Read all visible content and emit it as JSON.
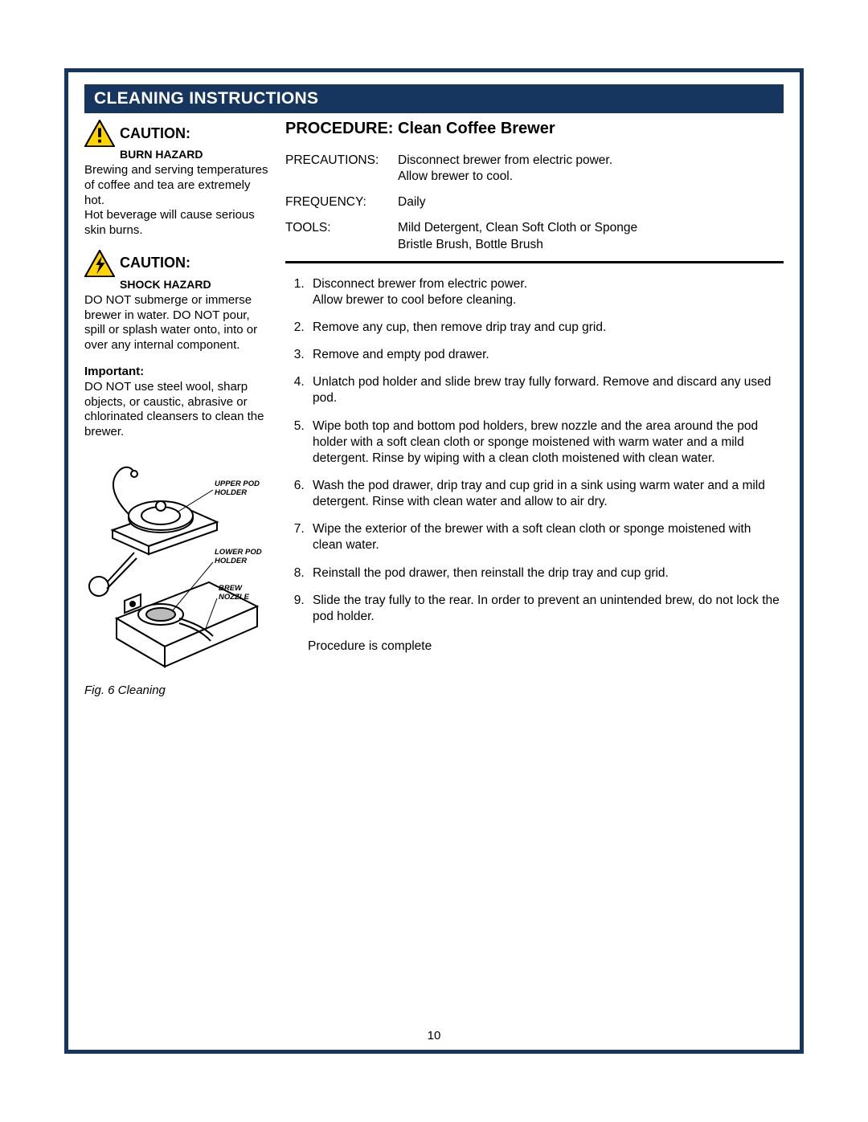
{
  "colors": {
    "brand_navy": "#17365f",
    "warn_yellow": "#ffd400",
    "black": "#000000",
    "white": "#ffffff"
  },
  "section_header": "CLEANING INSTRUCTIONS",
  "cautions": [
    {
      "title": "CAUTION:",
      "hazard": "BURN HAZARD",
      "icon": "warn-triangle-exclaim",
      "body": "Brewing and serving temperatures of coffee and tea are extremely hot.\nHot beverage will cause serious skin burns."
    },
    {
      "title": "CAUTION:",
      "hazard": "SHOCK HAZARD",
      "icon": "warn-triangle-bolt",
      "body": "DO NOT submerge or immerse brewer in water.  DO NOT pour, spill or splash water onto, into or over any internal component."
    }
  ],
  "important": {
    "label": "Important:",
    "body": "DO NOT use steel wool, sharp objects, or caustic, abrasive or chlorinated cleansers to clean the brewer."
  },
  "figure": {
    "caption": "Fig. 6 Cleaning",
    "labels": {
      "upper": "UPPER POD HOLDER",
      "lower": "LOWER POD HOLDER",
      "nozzle": "BREW NOZZLE"
    }
  },
  "procedure": {
    "title": "PROCEDURE:  Clean Coffee Brewer",
    "meta": [
      {
        "label": "PRECAUTIONS:",
        "value": "Disconnect brewer from electric power.\nAllow brewer to cool."
      },
      {
        "label": "FREQUENCY:",
        "value": "Daily"
      },
      {
        "label": "TOOLS:",
        "value": "Mild Detergent, Clean Soft Cloth or Sponge\nBristle Brush, Bottle Brush"
      }
    ],
    "steps": [
      "Disconnect brewer from electric power.\nAllow brewer to cool before cleaning.",
      "Remove any cup, then remove drip tray and cup grid.",
      "Remove and empty pod drawer.",
      "Unlatch pod holder and slide brew tray fully forward.  Remove and discard any used pod.",
      "Wipe both top and bottom pod holders, brew nozzle and the area around the pod holder with a soft clean cloth or sponge moistened with warm water and a mild detergent.  Rinse by wiping with a clean cloth moistened with clean water.",
      "Wash the pod drawer, drip tray and cup grid in a sink using warm water and a mild detergent.  Rinse with clean water and allow to air dry.",
      "Wipe the exterior of the brewer with a soft clean cloth or sponge moistened with clean water.",
      "Reinstall the pod drawer, then reinstall the drip tray and cup grid.",
      "Slide the tray fully to the rear.  In order to prevent an unintended brew, do not lock the pod holder."
    ],
    "complete": "Procedure is complete"
  },
  "page_number": "10"
}
